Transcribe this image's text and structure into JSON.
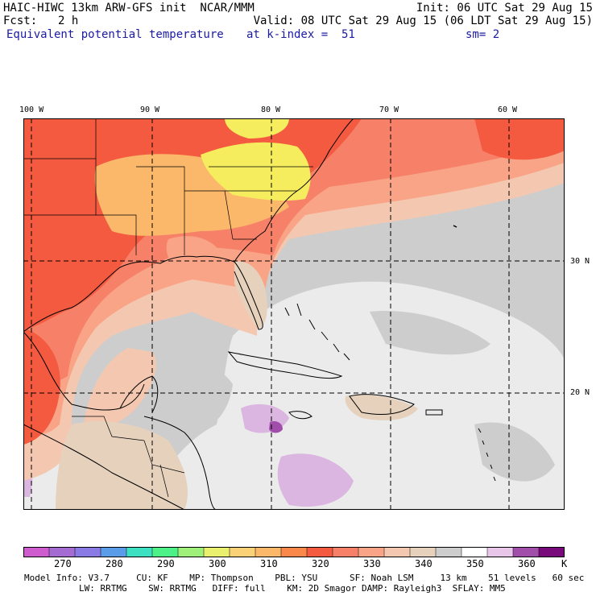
{
  "header": {
    "model_title": "HAIC-HIWC 13km ARW-GFS init  NCAR/MMM",
    "init": "Init: 06 UTC Sat 29 Aug 15",
    "fcst_label": "Fcst:",
    "fcst_value": "2 h",
    "valid": "Valid: 08 UTC Sat 29 Aug 15 (06 LDT Sat 29 Aug 15)",
    "field_name": "Equivalent potential temperature",
    "level": "at k-index =  51",
    "smoothing": "sm= 2"
  },
  "map": {
    "lon_labels": [
      "100 W",
      "90 W",
      "80 W",
      "70 W",
      "60 W"
    ],
    "lat_labels": [
      "30 N",
      "20 N"
    ],
    "colors": {
      "land_warm": "#f35a40",
      "coral": "#f68068",
      "salmon": "#f9a487",
      "peach": "#f4c8b0",
      "orange": "#fbb86a",
      "yellow": "#f5ec5e",
      "tan": "#e6d1bd",
      "gray": "#cdcdcd",
      "light": "#ebebeb",
      "lavender": "#dbb6e0",
      "purple": "#a04ea9",
      "gridline": "#000000",
      "coastline": "#000000"
    }
  },
  "colorbar": {
    "labels": [
      "270",
      "280",
      "290",
      "300",
      "310",
      "320",
      "330",
      "340",
      "350",
      "360"
    ],
    "unit": "K",
    "colors": [
      "#cf5ccf",
      "#a46cd2",
      "#8a7ae6",
      "#5a9ce8",
      "#3ee0c2",
      "#4ef088",
      "#9ef07a",
      "#e8f06e",
      "#fbd178",
      "#fbb86a",
      "#f9884a",
      "#f35a40",
      "#f68068",
      "#f9a487",
      "#f4c8b0",
      "#e6d1bd",
      "#cdcdcd",
      "#ffffff",
      "#e8c6ea",
      "#a04ea9",
      "#780a7c"
    ]
  },
  "footer": {
    "line1": "Model Info: V3.7     CU: KF    MP: Thompson    PBL: YSU      SF: Noah LSM     13 km    51 levels   60 sec",
    "line2": "LW: RRTMG    SW: RRTMG   DIFF: full    KM: 2D Smagor DAMP: Rayleigh3  SFLAY: MM5"
  }
}
